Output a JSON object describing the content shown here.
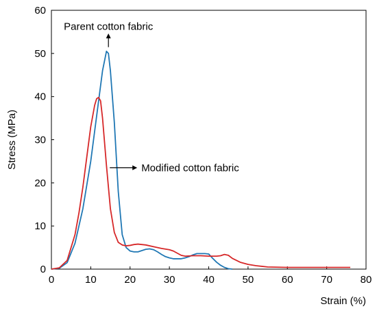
{
  "chart_data": {
    "type": "line",
    "xlabel": "Strain (%)",
    "ylabel": "Stress (MPa)",
    "xlim": [
      0,
      80
    ],
    "ylim": [
      0,
      60
    ],
    "xticks": [
      0,
      10,
      20,
      30,
      40,
      50,
      60,
      70,
      80
    ],
    "yticks": [
      0,
      10,
      20,
      30,
      40,
      50,
      60
    ],
    "grid": false,
    "legend": "none",
    "series": [
      {
        "color": "#1f77b4",
        "x": [
          0,
          2,
          4,
          6,
          8,
          10,
          11,
          12,
          13,
          14,
          14.5,
          15,
          16,
          17,
          18,
          19,
          20,
          21,
          22,
          23,
          24,
          25,
          26,
          27,
          28,
          29,
          30,
          31,
          32,
          33,
          34,
          35,
          36,
          37,
          38,
          39,
          40,
          41,
          42,
          43,
          44,
          45,
          46
        ],
        "y": [
          0,
          0.2,
          1.5,
          6,
          14,
          25,
          32,
          39,
          46,
          50.5,
          50,
          46,
          34,
          18,
          8,
          5,
          4.2,
          4.0,
          4.0,
          4.3,
          4.6,
          4.7,
          4.5,
          4.0,
          3.4,
          2.9,
          2.6,
          2.4,
          2.4,
          2.4,
          2.6,
          2.9,
          3.3,
          3.6,
          3.6,
          3.6,
          3.5,
          2.5,
          1.6,
          0.9,
          0.4,
          0.1,
          0
        ]
      },
      {
        "color": "#d62728",
        "x": [
          0,
          2,
          4,
          6,
          7,
          8,
          9,
          10,
          11,
          11.5,
          12,
          12.5,
          13,
          14,
          15,
          16,
          17,
          18,
          19,
          20,
          21,
          22,
          24,
          26,
          28,
          30,
          31,
          32,
          33,
          34,
          36,
          38,
          40,
          42,
          43,
          44,
          45,
          46,
          48,
          50,
          52,
          55,
          60,
          65,
          70,
          76
        ],
        "y": [
          0,
          0.3,
          2,
          8,
          13,
          19,
          26,
          33,
          38,
          39.5,
          39.8,
          39,
          35,
          24,
          14,
          8.5,
          6.2,
          5.6,
          5.4,
          5.5,
          5.7,
          5.8,
          5.6,
          5.2,
          4.8,
          4.5,
          4.2,
          3.7,
          3.2,
          3.0,
          3.1,
          3.1,
          3.0,
          3.0,
          3.1,
          3.4,
          3.2,
          2.5,
          1.6,
          1.1,
          0.8,
          0.5,
          0.4,
          0.4,
          0.4,
          0.4
        ]
      }
    ],
    "annotations": [
      {
        "text": "Parent cotton fabric",
        "arrow": "down",
        "target": [
          14.5,
          50.5
        ]
      },
      {
        "text": "Modified cotton fabric",
        "arrow": "left",
        "target": [
          14.5,
          23.5
        ]
      }
    ]
  }
}
